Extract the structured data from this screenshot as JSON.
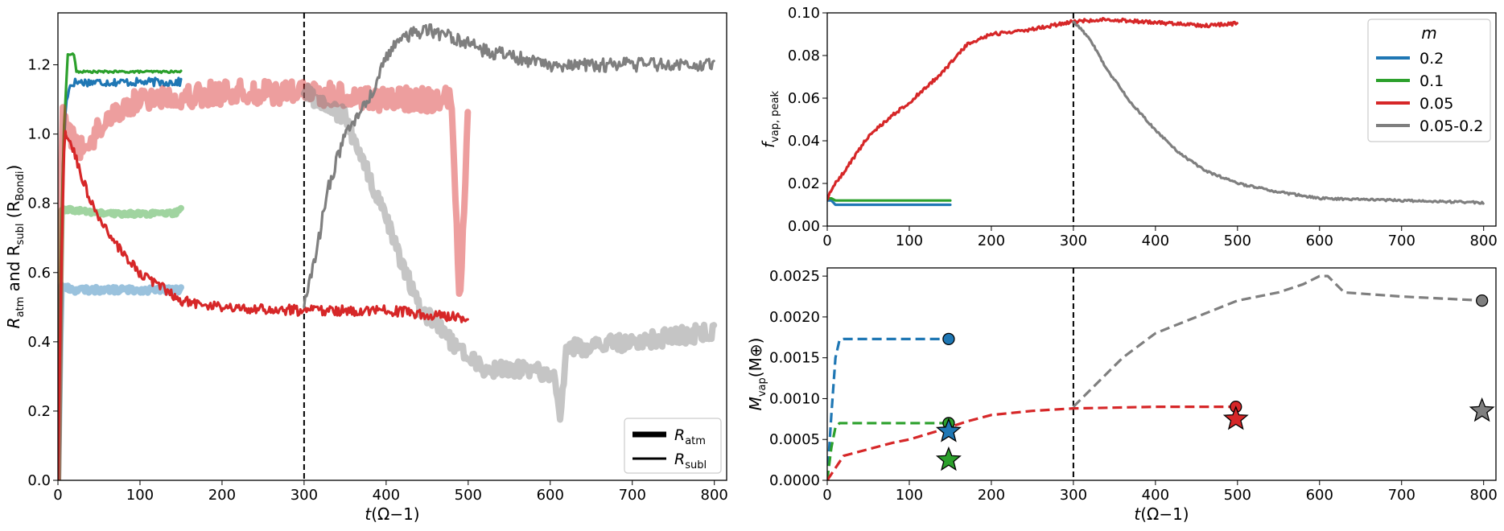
{
  "figure": {
    "layout": "left panel spanning full height; two stacked panels on the right sharing the time axis"
  },
  "chart_data": [
    {
      "id": "left",
      "type": "line",
      "xlabel": "t(Ω⁻¹)",
      "ylabel_main": "R",
      "ylabel_sub1": "atm",
      "ylabel_mid": " and R",
      "ylabel_sub2": "subl",
      "ylabel_end": " (R",
      "ylabel_sub3": "Bondi",
      "ylabel_close": ")",
      "xlim": [
        0,
        815
      ],
      "ylim": [
        0,
        1.35
      ],
      "xticks": [
        0,
        100,
        200,
        300,
        400,
        500,
        600,
        700,
        800
      ],
      "yticks": [
        0.0,
        0.2,
        0.4,
        0.6,
        0.8,
        1.0,
        1.2
      ],
      "ytick_labels": [
        "0.0",
        "0.2",
        "0.4",
        "0.6",
        "0.8",
        "1.0",
        "1.2"
      ],
      "vline": 300,
      "legend": {
        "position": "lower-right",
        "entries": [
          {
            "main": "R",
            "sub": "atm",
            "style": "thick"
          },
          {
            "main": "R",
            "sub": "subl",
            "style": "thin"
          }
        ]
      },
      "series": [
        {
          "name": "m=0.2 R_subl",
          "color": "#1f77b4",
          "style": "thin",
          "noise": 0.012,
          "points": [
            [
              0,
              0
            ],
            [
              3,
              0.4
            ],
            [
              6,
              0.9
            ],
            [
              10,
              1.1
            ],
            [
              15,
              1.14
            ],
            [
              20,
              1.15
            ],
            [
              150,
              1.15
            ]
          ]
        },
        {
          "name": "m=0.1 R_subl",
          "color": "#2ca02c",
          "style": "thin",
          "noise": 0.003,
          "points": [
            [
              0,
              0
            ],
            [
              3,
              0.6
            ],
            [
              7,
              1.0
            ],
            [
              12,
              1.23
            ],
            [
              20,
              1.23
            ],
            [
              22,
              1.18
            ],
            [
              150,
              1.18
            ]
          ]
        },
        {
          "name": "m=0.2 R_atm",
          "color": "#1f77b4",
          "style": "thick",
          "alpha": 0.45,
          "noise": 0.008,
          "points": [
            [
              0,
              0.0
            ],
            [
              4,
              0.56
            ],
            [
              20,
              0.55
            ],
            [
              60,
              0.55
            ],
            [
              100,
              0.55
            ],
            [
              150,
              0.55
            ]
          ]
        },
        {
          "name": "m=0.1 R_atm",
          "color": "#2ca02c",
          "style": "thick",
          "alpha": 0.45,
          "noise": 0.006,
          "points": [
            [
              0,
              0.0
            ],
            [
              4,
              0.78
            ],
            [
              20,
              0.78
            ],
            [
              60,
              0.77
            ],
            [
              100,
              0.77
            ],
            [
              140,
              0.77
            ],
            [
              150,
              0.78
            ]
          ]
        },
        {
          "name": "m=0.05 R_atm",
          "color": "#d62728",
          "style": "thick",
          "alpha": 0.45,
          "noise": 0.035,
          "points": [
            [
              0,
              0.0
            ],
            [
              5,
              1.05
            ],
            [
              15,
              1.0
            ],
            [
              30,
              0.95
            ],
            [
              60,
              1.05
            ],
            [
              100,
              1.1
            ],
            [
              200,
              1.12
            ],
            [
              300,
              1.12
            ],
            [
              400,
              1.1
            ],
            [
              480,
              1.1
            ],
            [
              490,
              0.5
            ],
            [
              500,
              1.1
            ]
          ]
        },
        {
          "name": "m=0.05-0.2 R_atm",
          "color": "#7f7f7f",
          "style": "thick",
          "alpha": 0.45,
          "noise": 0.025,
          "points": [
            [
              300,
              1.12
            ],
            [
              350,
              1.05
            ],
            [
              400,
              0.75
            ],
            [
              440,
              0.5
            ],
            [
              480,
              0.4
            ],
            [
              520,
              0.32
            ],
            [
              580,
              0.32
            ],
            [
              605,
              0.3
            ],
            [
              612,
              0.18
            ],
            [
              620,
              0.38
            ],
            [
              700,
              0.4
            ],
            [
              800,
              0.43
            ]
          ]
        },
        {
          "name": "m=0.05 R_subl",
          "color": "#d62728",
          "style": "thin",
          "noise": 0.015,
          "points": [
            [
              0,
              0
            ],
            [
              4,
              0.6
            ],
            [
              8,
              1.0
            ],
            [
              15,
              0.98
            ],
            [
              40,
              0.8
            ],
            [
              60,
              0.72
            ],
            [
              80,
              0.65
            ],
            [
              100,
              0.6
            ],
            [
              130,
              0.55
            ],
            [
              150,
              0.52
            ],
            [
              200,
              0.5
            ],
            [
              300,
              0.49
            ],
            [
              400,
              0.49
            ],
            [
              500,
              0.47
            ]
          ]
        },
        {
          "name": "m=0.05-0.2 R_subl",
          "color": "#7f7f7f",
          "style": "thin",
          "noise": 0.02,
          "points": [
            [
              300,
              0.5
            ],
            [
              310,
              0.6
            ],
            [
              330,
              0.85
            ],
            [
              350,
              1.0
            ],
            [
              380,
              1.1
            ],
            [
              400,
              1.22
            ],
            [
              420,
              1.28
            ],
            [
              450,
              1.3
            ],
            [
              480,
              1.28
            ],
            [
              520,
              1.24
            ],
            [
              560,
              1.22
            ],
            [
              600,
              1.2
            ],
            [
              800,
              1.2
            ]
          ]
        }
      ]
    },
    {
      "id": "top-right",
      "type": "line",
      "ylabel_main": "f",
      "ylabel_sub": "vap, peak",
      "xlim": [
        0,
        815
      ],
      "ylim": [
        0,
        0.1
      ],
      "xticks": [
        0,
        100,
        200,
        300,
        400,
        500,
        600,
        700,
        800
      ],
      "yticks": [
        0.0,
        0.02,
        0.04,
        0.06,
        0.08,
        0.1
      ],
      "ytick_labels": [
        "0.00",
        "0.02",
        "0.04",
        "0.06",
        "0.08",
        "0.10"
      ],
      "vline": 300,
      "legend": {
        "position": "top-right",
        "title": "m",
        "entries": [
          {
            "label": "0.2",
            "color": "#1f77b4"
          },
          {
            "label": "0.1",
            "color": "#2ca02c"
          },
          {
            "label": "0.05",
            "color": "#d62728"
          },
          {
            "label": "0.05-0.2",
            "color": "#7f7f7f"
          }
        ]
      },
      "series": [
        {
          "name": "0.2",
          "color": "#1f77b4",
          "noise": 0.0,
          "points": [
            [
              0,
              0.012
            ],
            [
              5,
              0.012
            ],
            [
              10,
              0.01
            ],
            [
              150,
              0.01
            ]
          ]
        },
        {
          "name": "0.1",
          "color": "#2ca02c",
          "noise": 0.0,
          "points": [
            [
              0,
              0.013
            ],
            [
              5,
              0.013
            ],
            [
              10,
              0.012
            ],
            [
              150,
              0.012
            ]
          ]
        },
        {
          "name": "0.05",
          "color": "#d62728",
          "noise": 0.0008,
          "points": [
            [
              0,
              0.013
            ],
            [
              10,
              0.02
            ],
            [
              25,
              0.028
            ],
            [
              50,
              0.042
            ],
            [
              80,
              0.052
            ],
            [
              100,
              0.058
            ],
            [
              140,
              0.072
            ],
            [
              170,
              0.085
            ],
            [
              200,
              0.09
            ],
            [
              230,
              0.091
            ],
            [
              260,
              0.093
            ],
            [
              300,
              0.096
            ],
            [
              340,
              0.097
            ],
            [
              380,
              0.096
            ],
            [
              420,
              0.095
            ],
            [
              460,
              0.094
            ],
            [
              500,
              0.095
            ]
          ]
        },
        {
          "name": "0.05-0.2",
          "color": "#7f7f7f",
          "noise": 0.0005,
          "points": [
            [
              300,
              0.096
            ],
            [
              320,
              0.088
            ],
            [
              340,
              0.074
            ],
            [
              370,
              0.058
            ],
            [
              400,
              0.045
            ],
            [
              430,
              0.034
            ],
            [
              460,
              0.026
            ],
            [
              500,
              0.02
            ],
            [
              550,
              0.016
            ],
            [
              600,
              0.013
            ],
            [
              700,
              0.012
            ],
            [
              800,
              0.011
            ]
          ]
        }
      ]
    },
    {
      "id": "bottom-right",
      "type": "line",
      "xlabel": "t(Ω⁻¹)",
      "ylabel_main": "M",
      "ylabel_sub": "vap",
      "ylabel_end": "(M⊕)",
      "xlim": [
        0,
        815
      ],
      "ylim": [
        0,
        0.0026
      ],
      "xticks": [
        0,
        100,
        200,
        300,
        400,
        500,
        600,
        700,
        800
      ],
      "yticks": [
        0.0,
        0.0005,
        0.001,
        0.0015,
        0.002,
        0.0025
      ],
      "ytick_labels": [
        "0.0000",
        "0.0005",
        "0.0010",
        "0.0015",
        "0.0020",
        "0.0025"
      ],
      "vline": 300,
      "series": [
        {
          "name": "0.2",
          "color": "#1f77b4",
          "dashed": true,
          "points": [
            [
              0,
              0
            ],
            [
              5,
              0.0008
            ],
            [
              10,
              0.0015
            ],
            [
              15,
              0.00172
            ],
            [
              20,
              0.00173
            ],
            [
              150,
              0.00173
            ]
          ]
        },
        {
          "name": "0.1",
          "color": "#2ca02c",
          "dashed": true,
          "points": [
            [
              0,
              0
            ],
            [
              5,
              0.0004
            ],
            [
              10,
              0.00065
            ],
            [
              15,
              0.0007
            ],
            [
              150,
              0.0007
            ]
          ]
        },
        {
          "name": "0.05",
          "color": "#d62728",
          "dashed": true,
          "points": [
            [
              0,
              0
            ],
            [
              10,
              0.00015
            ],
            [
              20,
              0.0003
            ],
            [
              50,
              0.00038
            ],
            [
              80,
              0.00046
            ],
            [
              100,
              0.0005
            ],
            [
              140,
              0.00062
            ],
            [
              170,
              0.00072
            ],
            [
              200,
              0.0008
            ],
            [
              250,
              0.00085
            ],
            [
              300,
              0.00088
            ],
            [
              400,
              0.0009
            ],
            [
              500,
              0.0009
            ]
          ]
        },
        {
          "name": "0.05-0.2",
          "color": "#7f7f7f",
          "dashed": true,
          "points": [
            [
              300,
              0.0009
            ],
            [
              320,
              0.0011
            ],
            [
              360,
              0.0015
            ],
            [
              400,
              0.0018
            ],
            [
              450,
              0.002
            ],
            [
              500,
              0.0022
            ],
            [
              550,
              0.0023
            ],
            [
              580,
              0.0024
            ],
            [
              600,
              0.0025
            ],
            [
              610,
              0.0025
            ],
            [
              630,
              0.0023
            ],
            [
              700,
              0.00225
            ],
            [
              800,
              0.0022
            ]
          ]
        }
      ],
      "end_markers": [
        {
          "x": 148,
          "y": 0.00173,
          "color": "#1f77b4"
        },
        {
          "x": 148,
          "y": 0.0007,
          "color": "#2ca02c"
        },
        {
          "x": 498,
          "y": 0.0009,
          "color": "#d62728"
        },
        {
          "x": 798,
          "y": 0.0022,
          "color": "#7f7f7f"
        }
      ],
      "stars": [
        {
          "x": 148,
          "y": 0.0006,
          "color": "#1f77b4"
        },
        {
          "x": 148,
          "y": 0.00025,
          "color": "#2ca02c"
        },
        {
          "x": 498,
          "y": 0.00075,
          "color": "#d62728"
        },
        {
          "x": 798,
          "y": 0.00085,
          "color": "#7f7f7f"
        }
      ]
    }
  ]
}
